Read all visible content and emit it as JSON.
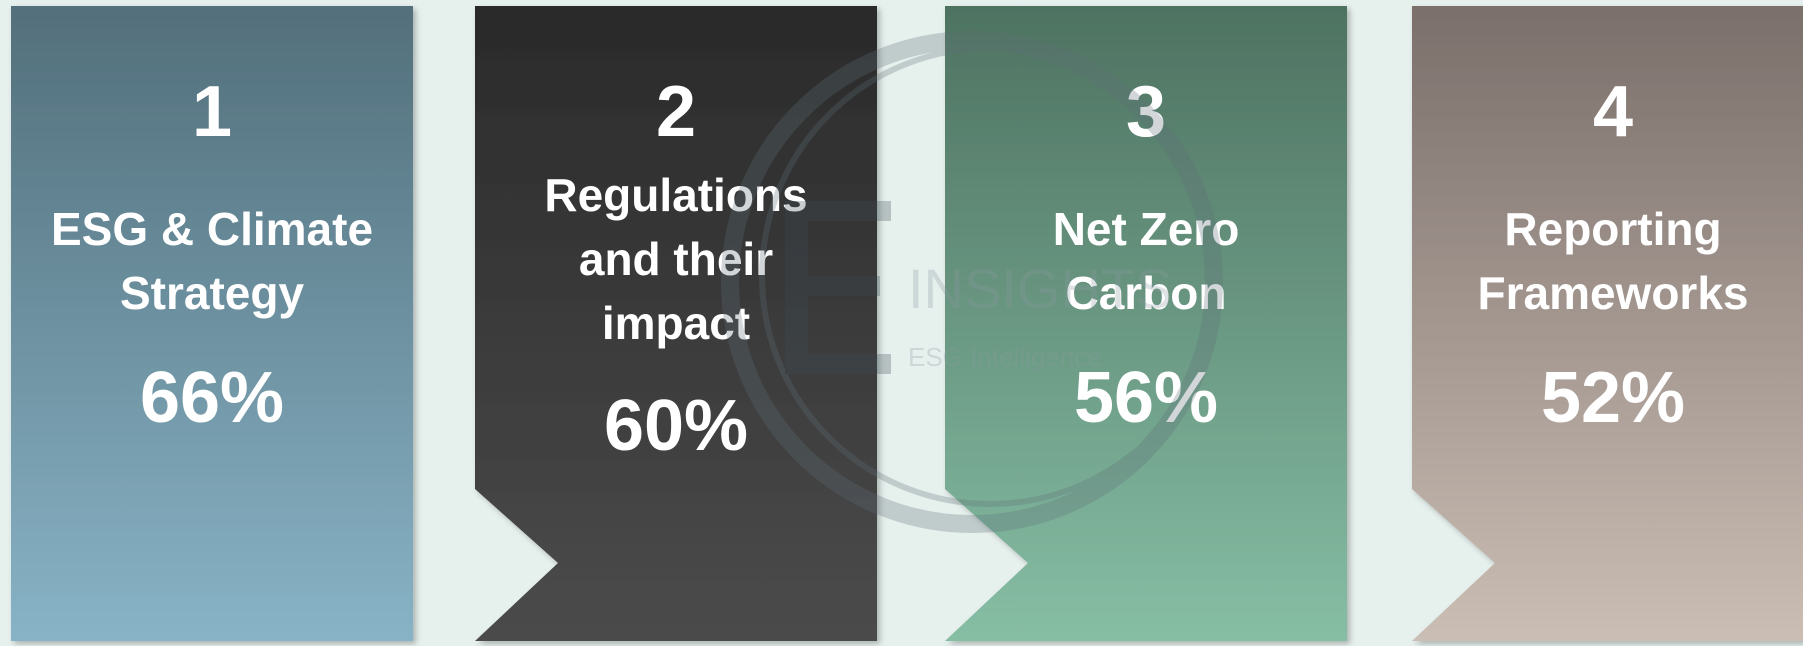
{
  "watermark": {
    "brand": "INSIGHTS",
    "tagline": "ESG Intelligence"
  },
  "cards": [
    {
      "number": "1",
      "title": [
        "ESG & Climate",
        "Strategy"
      ],
      "percent": "66%",
      "colors": [
        "#526f7b",
        "#88b3c6"
      ],
      "notch": false
    },
    {
      "number": "2",
      "title": [
        "Regulations",
        "and their",
        "impact"
      ],
      "percent": "60%",
      "colors": [
        "#2a2a2a",
        "#4b4b4b"
      ],
      "notch": true
    },
    {
      "number": "3",
      "title": [
        "Net Zero",
        "Carbon"
      ],
      "percent": "56%",
      "colors": [
        "#4e7261",
        "#86bea4"
      ],
      "notch": true
    },
    {
      "number": "4",
      "title": [
        "Reporting",
        "Frameworks"
      ],
      "percent": "52%",
      "colors": [
        "#7b6f6b",
        "#cbbeb4"
      ],
      "notch": true
    }
  ]
}
